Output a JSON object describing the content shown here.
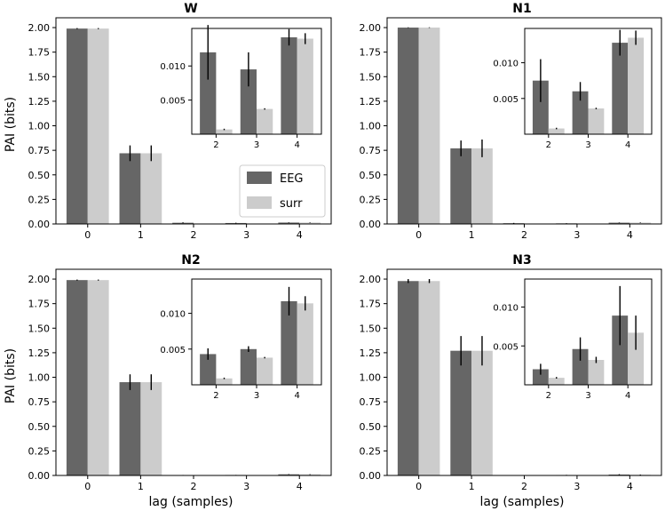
{
  "chart_data": {
    "type": "bar",
    "xlabel": "lag (samples)",
    "ylabel": "PAI (bits)",
    "legend": {
      "placement": "center-right",
      "entries": [
        "EEG",
        "surr"
      ]
    },
    "colors": {
      "EEG": "#666666",
      "surr": "#cccccc",
      "errorbar": "#000000"
    },
    "panels": [
      {
        "title": "W",
        "categories": [
          "0",
          "1",
          "2",
          "3",
          "4"
        ],
        "ylim": [
          0,
          2.1
        ],
        "yticks": [
          "0.00",
          "0.25",
          "0.50",
          "0.75",
          "1.00",
          "1.25",
          "1.50",
          "1.75",
          "2.00"
        ],
        "series": [
          {
            "name": "EEG",
            "values": [
              1.99,
              0.72,
              0.012,
              0.0095,
              0.0142
            ],
            "errors": [
              0.005,
              0.08,
              0.004,
              0.0025,
              0.0012
            ]
          },
          {
            "name": "surr",
            "values": [
              1.99,
              0.72,
              0.0007,
              0.0037,
              0.014
            ],
            "errors": [
              0.005,
              0.08,
              0.0001,
              0.0001,
              0.0008
            ]
          }
        ],
        "inset": {
          "categories": [
            "2",
            "3",
            "4"
          ],
          "ylim": [
            0,
            0.0155
          ],
          "yticks": [
            "0.005",
            "0.010"
          ],
          "series": [
            {
              "name": "EEG",
              "values": [
                0.012,
                0.0095,
                0.0142
              ],
              "errors": [
                0.004,
                0.0025,
                0.0012
              ]
            },
            {
              "name": "surr",
              "values": [
                0.0007,
                0.0037,
                0.014
              ],
              "errors": [
                0.0001,
                0.0001,
                0.0008
              ]
            }
          ]
        }
      },
      {
        "title": "N1",
        "categories": [
          "0",
          "1",
          "2",
          "3",
          "4"
        ],
        "ylim": [
          0,
          2.1
        ],
        "yticks": [
          "0.00",
          "0.25",
          "0.50",
          "0.75",
          "1.00",
          "1.25",
          "1.50",
          "1.75",
          "2.00"
        ],
        "series": [
          {
            "name": "EEG",
            "values": [
              2.0,
              0.77,
              0.0075,
              0.006,
              0.0128
            ],
            "errors": [
              0.003,
              0.08,
              0.003,
              0.0013,
              0.0018
            ]
          },
          {
            "name": "surr",
            "values": [
              2.0,
              0.77,
              0.0008,
              0.0036,
              0.0135
            ],
            "errors": [
              0.003,
              0.09,
              0.0001,
              0.0001,
              0.001
            ]
          }
        ],
        "inset": {
          "categories": [
            "2",
            "3",
            "4"
          ],
          "ylim": [
            0,
            0.0148
          ],
          "yticks": [
            "0.005",
            "0.010"
          ],
          "series": [
            {
              "name": "EEG",
              "values": [
                0.0075,
                0.006,
                0.0128
              ],
              "errors": [
                0.003,
                0.0013,
                0.0018
              ]
            },
            {
              "name": "surr",
              "values": [
                0.0008,
                0.0036,
                0.0135
              ],
              "errors": [
                0.0001,
                0.0001,
                0.001
              ]
            }
          ]
        }
      },
      {
        "title": "N2",
        "categories": [
          "0",
          "1",
          "2",
          "3",
          "4"
        ],
        "ylim": [
          0,
          2.1
        ],
        "yticks": [
          "0.00",
          "0.25",
          "0.50",
          "0.75",
          "1.00",
          "1.25",
          "1.50",
          "1.75",
          "2.00"
        ],
        "series": [
          {
            "name": "EEG",
            "values": [
              1.99,
              0.95,
              0.0043,
              0.005,
              0.0117
            ],
            "errors": [
              0.005,
              0.08,
              0.0008,
              0.0004,
              0.002
            ]
          },
          {
            "name": "surr",
            "values": [
              1.99,
              0.95,
              0.0009,
              0.0038,
              0.0114
            ],
            "errors": [
              0.005,
              0.08,
              0.0001,
              0.0001,
              0.001
            ]
          }
        ],
        "inset": {
          "categories": [
            "2",
            "3",
            "4"
          ],
          "ylim": [
            0,
            0.0148
          ],
          "yticks": [
            "0.005",
            "0.010"
          ],
          "series": [
            {
              "name": "EEG",
              "values": [
                0.0043,
                0.005,
                0.0117
              ],
              "errors": [
                0.0008,
                0.0004,
                0.002
              ]
            },
            {
              "name": "surr",
              "values": [
                0.0009,
                0.0038,
                0.0114
              ],
              "errors": [
                0.0001,
                0.0001,
                0.001
              ]
            }
          ]
        }
      },
      {
        "title": "N3",
        "categories": [
          "0",
          "1",
          "2",
          "3",
          "4"
        ],
        "ylim": [
          0,
          2.1
        ],
        "yticks": [
          "0.00",
          "0.25",
          "0.50",
          "0.75",
          "1.00",
          "1.25",
          "1.50",
          "1.75",
          "2.00"
        ],
        "series": [
          {
            "name": "EEG",
            "values": [
              1.98,
              1.27,
              0.002,
              0.0046,
              0.0089
            ],
            "errors": [
              0.02,
              0.15,
              0.0007,
              0.0015,
              0.0038
            ]
          },
          {
            "name": "surr",
            "values": [
              1.98,
              1.27,
              0.0009,
              0.0032,
              0.0067
            ],
            "errors": [
              0.02,
              0.15,
              0.0001,
              0.0004,
              0.0022
            ]
          }
        ],
        "inset": {
          "categories": [
            "2",
            "3",
            "4"
          ],
          "ylim": [
            0,
            0.0136
          ],
          "yticks": [
            "0.005",
            "0.010"
          ],
          "series": [
            {
              "name": "EEG",
              "values": [
                0.002,
                0.0046,
                0.0089
              ],
              "errors": [
                0.0007,
                0.0015,
                0.0038
              ]
            },
            {
              "name": "surr",
              "values": [
                0.0009,
                0.0032,
                0.0067
              ],
              "errors": [
                0.0001,
                0.0004,
                0.0022
              ]
            }
          ]
        }
      }
    ]
  }
}
